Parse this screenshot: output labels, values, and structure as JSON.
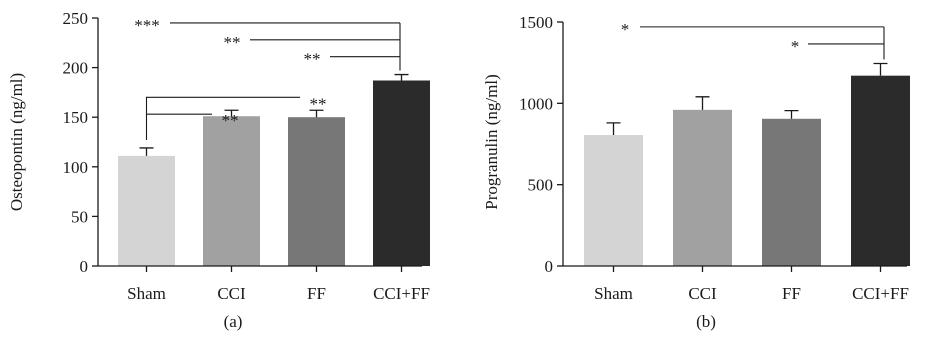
{
  "chart_data": [
    {
      "type": "bar",
      "panel_label": "(a)",
      "ylabel": "Osteopontin (ng/ml)",
      "ylim": [
        0,
        250
      ],
      "yticks": [
        0,
        50,
        100,
        150,
        200,
        250
      ],
      "categories": [
        "Sham",
        "CCI",
        "FF",
        "CCI+FF"
      ],
      "values": [
        111,
        151,
        150,
        187
      ],
      "errors": [
        8,
        6,
        7,
        6
      ],
      "bar_colors": [
        "#d4d4d4",
        "#a1a1a1",
        "#777777",
        "#2b2b2b"
      ],
      "significance": [
        {
          "from": 0,
          "to": 3,
          "label": "***",
          "y": 245
        },
        {
          "from": 1,
          "to": 3,
          "label": "**",
          "y": 228
        },
        {
          "from": 2,
          "to": 3,
          "label": "**",
          "y": 211
        },
        {
          "from": 3,
          "to": 0,
          "label": "**",
          "y": 170
        },
        {
          "from": 0,
          "to": 1,
          "label": "**",
          "y": 153
        }
      ]
    },
    {
      "type": "bar",
      "panel_label": "(b)",
      "ylabel": "Progranulin (ng/ml)",
      "ylim": [
        0,
        1500
      ],
      "yticks": [
        0,
        500,
        1000,
        1500
      ],
      "categories": [
        "Sham",
        "CCI",
        "FF",
        "CCI+FF"
      ],
      "values": [
        805,
        960,
        905,
        1170
      ],
      "errors": [
        75,
        80,
        50,
        75
      ],
      "bar_colors": [
        "#d4d4d4",
        "#a1a1a1",
        "#777777",
        "#2b2b2b"
      ],
      "significance": [
        {
          "from": 0,
          "to": 3,
          "label": "*",
          "y": 1470
        },
        {
          "from": 2,
          "to": 3,
          "label": "*",
          "y": 1365
        }
      ]
    }
  ]
}
